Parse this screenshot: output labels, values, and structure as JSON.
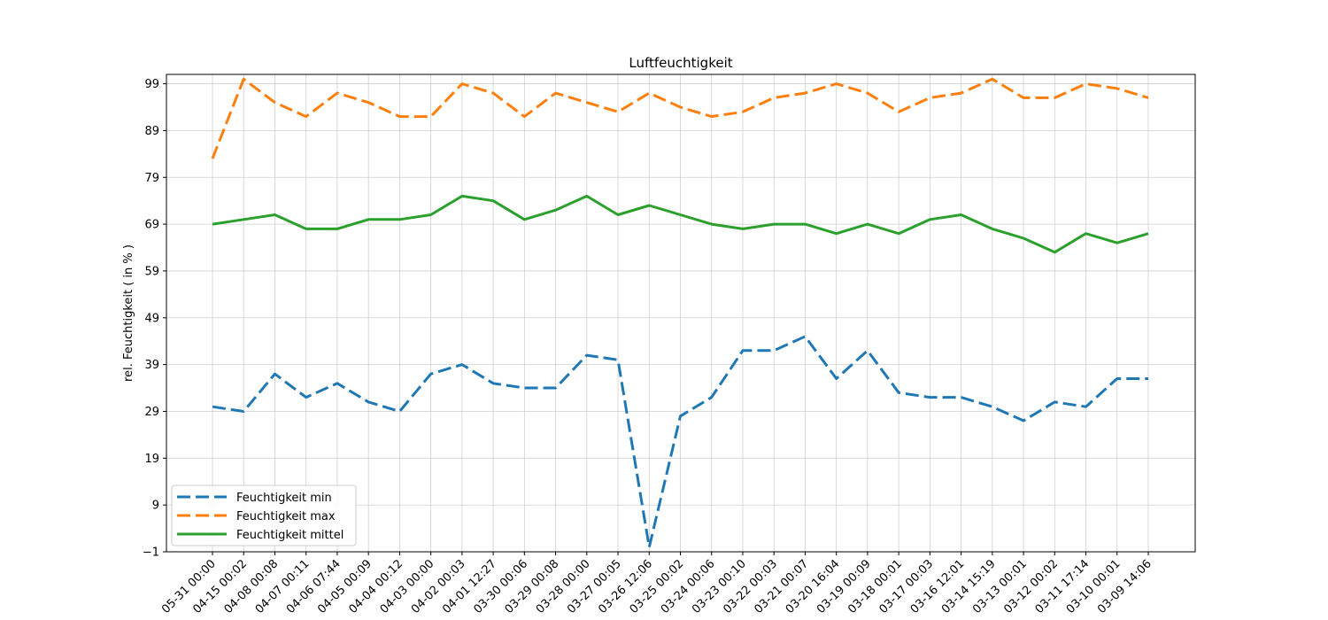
{
  "chart_data": {
    "type": "line",
    "title": "Luftfeuchtigkeit",
    "xlabel": "",
    "ylabel": "rel. Feuchtigkeit ( in % )",
    "yticks": [
      -1,
      9,
      19,
      29,
      39,
      49,
      59,
      69,
      79,
      89,
      99
    ],
    "ylim": [
      -1,
      101
    ],
    "grid": true,
    "legend_position": "lower-left",
    "categories": [
      "05-31 00:00",
      "04-15 00:02",
      "04-08 00:08",
      "04-07 00:11",
      "04-06 07:44",
      "04-05 00:09",
      "04-04 00:12",
      "04-03 00:00",
      "04-02 00:03",
      "04-01 12:27",
      "03-30 00:06",
      "03-29 00:08",
      "03-28 00:00",
      "03-27 00:05",
      "03-26 12:06",
      "03-25 00:02",
      "03-24 00:06",
      "03-23 00:10",
      "03-22 00:03",
      "03-21 00:07",
      "03-20 16:04",
      "03-19 00:09",
      "03-18 00:01",
      "03-17 00:03",
      "03-16 12:01",
      "03-14 15:19",
      "03-13 00:01",
      "03-12 00:02",
      "03-11 17:14",
      "03-10 00:01",
      "03-09 14:06"
    ],
    "series": [
      {
        "name": "Feuchtigkeit min",
        "color": "#1f77b4",
        "style": "dashed",
        "values": [
          30,
          29,
          37,
          32,
          35,
          31,
          29,
          37,
          39,
          35,
          34,
          34,
          41,
          40,
          0,
          28,
          32,
          42,
          42,
          45,
          36,
          42,
          33,
          32,
          32,
          30,
          27,
          31,
          30,
          36,
          36
        ]
      },
      {
        "name": "Feuchtigkeit max",
        "color": "#ff7f0e",
        "style": "dashed",
        "values": [
          83,
          100,
          95,
          92,
          97,
          95,
          92,
          92,
          99,
          97,
          92,
          97,
          95,
          93,
          97,
          94,
          92,
          93,
          96,
          97,
          99,
          97,
          93,
          96,
          97,
          100,
          96,
          96,
          99,
          98,
          96
        ]
      },
      {
        "name": "Feuchtigkeit mittel",
        "color": "#2ca02c",
        "style": "solid",
        "values": [
          69,
          70,
          71,
          68,
          68,
          70,
          70,
          71,
          75,
          74,
          70,
          72,
          75,
          71,
          73,
          71,
          69,
          68,
          69,
          69,
          67,
          69,
          67,
          70,
          71,
          68,
          66,
          63,
          67,
          65,
          67
        ]
      }
    ]
  }
}
